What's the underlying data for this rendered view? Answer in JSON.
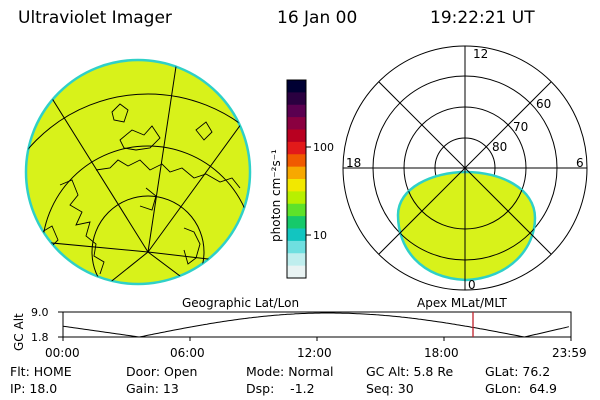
{
  "header": {
    "instrument": "Ultraviolet Imager",
    "date": "16 Jan 00",
    "time": "19:22:21 UT"
  },
  "panels": {
    "left_caption": "Geographic Lat/Lon",
    "right_caption": "Apex MLat/MLT",
    "polar_mlt_labels": {
      "top": "12",
      "left": "18",
      "right": "6",
      "bottom": "0"
    },
    "polar_lat_labels": [
      "60",
      "70",
      "80"
    ]
  },
  "colorbar": {
    "unit_label": "photon cm⁻²s⁻¹",
    "tick_labels": [
      "100",
      "10"
    ],
    "colors": [
      "#000033",
      "#2a0040",
      "#5a0050",
      "#8a0040",
      "#b80020",
      "#e21a1a",
      "#f05a00",
      "#f7a800",
      "#f2e800",
      "#b8f000",
      "#5ee22a",
      "#16c96a",
      "#12c5c0",
      "#6fdfe0",
      "#bfeeee",
      "#e9f3f3"
    ]
  },
  "altitude_strip": {
    "axis_label": "GC Alt",
    "y_ticks": [
      "9.0",
      "1.8"
    ],
    "time_ticks": [
      "00:00",
      "06:00",
      "12:00",
      "18:00",
      "23:59"
    ],
    "current_marker_hours": 19.37
  },
  "footer": {
    "row1": {
      "flt": "Flt: HOME",
      "door": "Door: Open",
      "mode": "Mode: Normal",
      "gcalt": "GC Alt: 5.8 Re",
      "glat": "GLat: 76.2"
    },
    "row2": {
      "ip": "IP: 18.0",
      "gain": "Gain: 13",
      "dsp": "Dsp:    -1.2",
      "seq": "Seq: 30",
      "glon": "GLon:  64.9"
    }
  },
  "colors": {
    "image_fill": "#d8f21a",
    "image_edge": "#2fd0c8",
    "marker_red": "#c0202a"
  }
}
